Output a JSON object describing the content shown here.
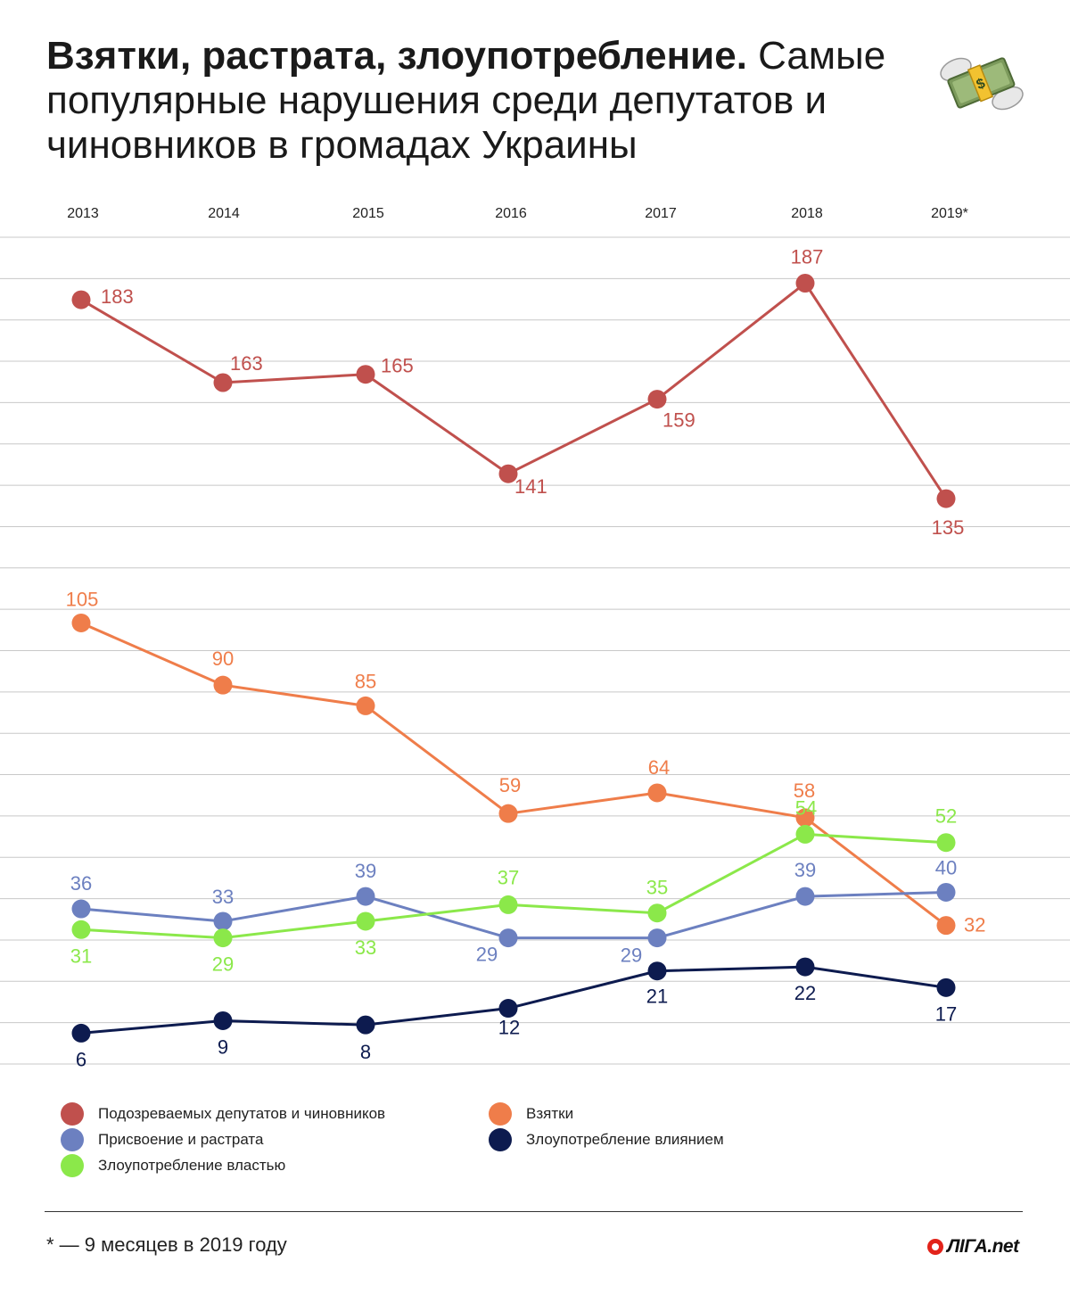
{
  "header": {
    "title_bold": "Взятки, растрата, злоупотребление.",
    "title_rest": " Самые популярные нарушения среди депутатов и чиновников в громадах Украины",
    "emoji_icon": "money-with-wings-icon"
  },
  "chart_data": {
    "type": "line",
    "categories": [
      "2013",
      "2014",
      "2015",
      "2016",
      "2017",
      "2018",
      "2019*"
    ],
    "grid": true,
    "legend_placement": "bottom",
    "series": [
      {
        "name": "Подозреваемых депутатов и чиновников",
        "color": "#c0504d",
        "values": [
          183,
          163,
          165,
          141,
          159,
          187,
          135
        ]
      },
      {
        "name": "Взятки",
        "color": "#ef7d4a",
        "values": [
          105,
          90,
          85,
          59,
          64,
          58,
          32
        ]
      },
      {
        "name": "Присвоение и растрата",
        "color": "#6c80c0",
        "values": [
          36,
          33,
          39,
          29,
          29,
          39,
          40
        ]
      },
      {
        "name": "Злоупотребление влиянием",
        "color": "#0d1b4f",
        "values": [
          6,
          9,
          8,
          12,
          21,
          22,
          17
        ]
      },
      {
        "name": "Злоупотребление властью",
        "color": "#8be84a",
        "values": [
          31,
          29,
          33,
          37,
          35,
          54,
          52
        ]
      }
    ]
  },
  "footer": {
    "footnote": "* — 9 месяцев в 2019 году",
    "logo_text": "ЛIГА.net",
    "logo_icon": "liga-logo-icon"
  }
}
